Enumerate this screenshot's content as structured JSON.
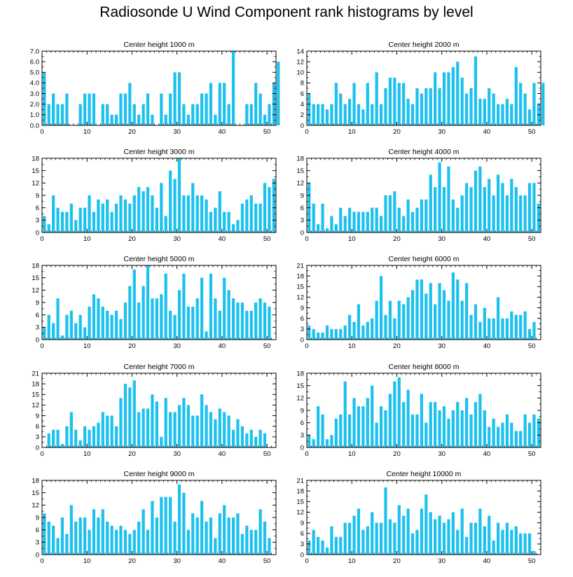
{
  "title": "Radiosonde U Wind Component rank histograms by level",
  "colors": {
    "bar": "#1cc1ee",
    "axis": "#000000",
    "background": "#ffffff"
  },
  "chart_data": [
    {
      "type": "bar",
      "title": "Center height 1000 m",
      "xlim": [
        0,
        52
      ],
      "ylim": [
        0,
        7
      ],
      "xticks": [
        0,
        10,
        20,
        30,
        40,
        50
      ],
      "yticks": [
        0,
        1,
        2,
        3,
        4,
        5,
        6,
        7
      ],
      "ytick_labels": [
        "0.0",
        "1.0",
        "2.0",
        "3.0",
        "4.0",
        "5.0",
        "6.0",
        "7.0"
      ],
      "values": [
        5,
        2,
        3,
        2,
        2,
        3,
        0,
        0,
        2,
        3,
        3,
        3,
        0,
        2,
        2,
        1,
        1,
        3,
        3,
        4,
        2,
        1,
        2,
        3,
        1,
        0,
        3,
        1,
        3,
        5,
        5,
        2,
        1,
        2,
        2,
        3,
        3,
        4,
        1,
        4,
        4,
        2,
        7,
        0,
        0,
        2,
        2,
        4,
        3,
        1,
        2,
        4,
        6
      ]
    },
    {
      "type": "bar",
      "title": "Center height 2000 m",
      "xlim": [
        0,
        52
      ],
      "ylim": [
        0,
        14
      ],
      "xticks": [
        0,
        10,
        20,
        30,
        40,
        50
      ],
      "yticks": [
        0,
        2,
        4,
        6,
        8,
        10,
        12,
        14
      ],
      "ytick_labels": [
        "0",
        "2",
        "4",
        "6",
        "8",
        "10",
        "12",
        "14"
      ],
      "values": [
        6,
        4,
        4,
        4,
        3,
        4,
        8,
        6,
        4,
        5,
        8,
        4,
        3,
        8,
        4,
        10,
        4,
        7,
        9,
        9,
        8,
        8,
        5,
        4,
        7,
        6,
        7,
        7,
        10,
        7,
        10,
        10,
        11,
        12,
        9,
        6,
        7,
        13,
        5,
        5,
        7,
        6,
        4,
        4,
        5,
        4,
        11,
        8,
        6,
        3,
        8,
        4,
        8
      ]
    },
    {
      "type": "bar",
      "title": "Center height 3000 m",
      "xlim": [
        0,
        52
      ],
      "ylim": [
        0,
        18
      ],
      "xticks": [
        0,
        10,
        20,
        30,
        40,
        50
      ],
      "yticks": [
        0,
        3,
        6,
        9,
        12,
        15,
        18
      ],
      "ytick_labels": [
        "0",
        "3",
        "6",
        "9",
        "12",
        "15",
        "18"
      ],
      "values": [
        4,
        2,
        9,
        6,
        5,
        5,
        7,
        3,
        6,
        6,
        9,
        5,
        8,
        7,
        8,
        5,
        7,
        9,
        8,
        7,
        9,
        11,
        10,
        11,
        9,
        6,
        12,
        4,
        15,
        13,
        18,
        9,
        9,
        12,
        9,
        9,
        8,
        5,
        6,
        10,
        5,
        5,
        2,
        3,
        7,
        8,
        9,
        7,
        7,
        12,
        11,
        13
      ]
    },
    {
      "type": "bar",
      "title": "Center height 4000 m",
      "xlim": [
        0,
        52
      ],
      "ylim": [
        0,
        18
      ],
      "xticks": [
        0,
        10,
        20,
        30,
        40,
        50
      ],
      "yticks": [
        0,
        3,
        6,
        9,
        12,
        15,
        18
      ],
      "ytick_labels": [
        "0",
        "3",
        "6",
        "9",
        "12",
        "15",
        "18"
      ],
      "values": [
        12,
        7,
        2,
        7,
        1,
        4,
        2,
        6,
        4,
        6,
        5,
        5,
        5,
        5,
        6,
        6,
        4,
        9,
        9,
        10,
        6,
        4,
        8,
        5,
        6,
        8,
        8,
        14,
        11,
        17,
        11,
        16,
        8,
        6,
        9,
        12,
        11,
        15,
        16,
        11,
        13,
        9,
        14,
        12,
        9,
        13,
        11,
        9,
        9,
        12,
        12,
        7
      ]
    },
    {
      "type": "bar",
      "title": "Center height 5000 m",
      "xlim": [
        0,
        52
      ],
      "ylim": [
        0,
        18
      ],
      "xticks": [
        0,
        10,
        20,
        30,
        40,
        50
      ],
      "yticks": [
        0,
        3,
        6,
        9,
        12,
        15,
        18
      ],
      "ytick_labels": [
        "0",
        "3",
        "6",
        "9",
        "12",
        "15",
        "18"
      ],
      "values": [
        3,
        6,
        4,
        10,
        1,
        6,
        7,
        4,
        6,
        3,
        8,
        11,
        10,
        8,
        7,
        6,
        7,
        5,
        9,
        13,
        17,
        9,
        13,
        18,
        10,
        10,
        11,
        16,
        7,
        6,
        12,
        16,
        8,
        8,
        10,
        15,
        2,
        16,
        10,
        7,
        15,
        12,
        10,
        9,
        9,
        7,
        7,
        9,
        10,
        9,
        8
      ]
    },
    {
      "type": "bar",
      "title": "Center height 6000 m",
      "xlim": [
        0,
        52
      ],
      "ylim": [
        0,
        21
      ],
      "xticks": [
        0,
        10,
        20,
        30,
        40,
        50
      ],
      "yticks": [
        0,
        3,
        6,
        9,
        12,
        15,
        18,
        21
      ],
      "ytick_labels": [
        "0",
        "3",
        "6",
        "9",
        "12",
        "15",
        "18",
        "21"
      ],
      "values": [
        4,
        3,
        2,
        2,
        4,
        3,
        3,
        3,
        4,
        7,
        5,
        10,
        4,
        5,
        6,
        11,
        18,
        7,
        11,
        6,
        11,
        10,
        12,
        14,
        17,
        17,
        13,
        16,
        10,
        16,
        14,
        11,
        19,
        17,
        11,
        16,
        7,
        10,
        5,
        9,
        6,
        6,
        12,
        6,
        6,
        8,
        7,
        7,
        8,
        3,
        5
      ]
    },
    {
      "type": "bar",
      "title": "Center height 7000 m",
      "xlim": [
        0,
        52
      ],
      "ylim": [
        0,
        21
      ],
      "xticks": [
        0,
        10,
        20,
        30,
        40,
        50
      ],
      "yticks": [
        0,
        3,
        6,
        9,
        12,
        15,
        18,
        21
      ],
      "ytick_labels": [
        "0",
        "3",
        "6",
        "9",
        "12",
        "15",
        "18",
        "21"
      ],
      "values": [
        0,
        4,
        5,
        5,
        1,
        6,
        10,
        5,
        2,
        6,
        5,
        6,
        7,
        10,
        9,
        9,
        6,
        14,
        18,
        17,
        19,
        10,
        11,
        11,
        15,
        13,
        3,
        14,
        10,
        10,
        12,
        14,
        12,
        9,
        9,
        15,
        12,
        10,
        8,
        11,
        10,
        9,
        5,
        8,
        6,
        4,
        5,
        3,
        5,
        4
      ]
    },
    {
      "type": "bar",
      "title": "Center height 8000 m",
      "xlim": [
        0,
        52
      ],
      "ylim": [
        0,
        18
      ],
      "xticks": [
        0,
        10,
        20,
        30,
        40,
        50
      ],
      "yticks": [
        0,
        3,
        6,
        9,
        12,
        15,
        18
      ],
      "ytick_labels": [
        "0",
        "3",
        "6",
        "9",
        "12",
        "15",
        "18"
      ],
      "values": [
        3,
        2,
        10,
        8,
        2,
        3,
        7,
        8,
        16,
        8,
        12,
        10,
        10,
        12,
        15,
        6,
        10,
        9,
        13,
        16,
        17,
        11,
        14,
        8,
        8,
        13,
        6,
        11,
        11,
        9,
        10,
        7,
        9,
        11,
        9,
        12,
        8,
        11,
        13,
        9,
        5,
        7,
        5,
        6,
        8,
        6,
        4,
        4,
        8,
        6,
        8,
        7
      ]
    },
    {
      "type": "bar",
      "title": "Center height 9000 m",
      "xlim": [
        0,
        52
      ],
      "ylim": [
        0,
        18
      ],
      "xticks": [
        0,
        10,
        20,
        30,
        40,
        50
      ],
      "yticks": [
        0,
        3,
        6,
        9,
        12,
        15,
        18
      ],
      "ytick_labels": [
        "0",
        "3",
        "6",
        "9",
        "12",
        "15",
        "18"
      ],
      "values": [
        10,
        8,
        7,
        4,
        9,
        5,
        12,
        8,
        9,
        9,
        6,
        11,
        9,
        11,
        8,
        7,
        6,
        7,
        6,
        5,
        6,
        8,
        11,
        6,
        13,
        9,
        14,
        14,
        14,
        8,
        17,
        15,
        6,
        10,
        9,
        13,
        8,
        9,
        4,
        10,
        12,
        9,
        9,
        10,
        5,
        7,
        6,
        6,
        11,
        8,
        4
      ]
    },
    {
      "type": "bar",
      "title": "Center height 10000 m",
      "xlim": [
        0,
        52
      ],
      "ylim": [
        0,
        21
      ],
      "xticks": [
        0,
        10,
        20,
        30,
        40,
        50
      ],
      "yticks": [
        0,
        3,
        6,
        9,
        12,
        15,
        18,
        21
      ],
      "ytick_labels": [
        "0",
        "3",
        "6",
        "9",
        "12",
        "15",
        "18",
        "21"
      ],
      "values": [
        4,
        7,
        5,
        4,
        2,
        8,
        5,
        5,
        9,
        9,
        11,
        13,
        7,
        8,
        12,
        9,
        9,
        19,
        10,
        9,
        14,
        11,
        13,
        6,
        7,
        13,
        17,
        12,
        10,
        11,
        9,
        10,
        12,
        7,
        13,
        5,
        9,
        9,
        13,
        8,
        11,
        4,
        9,
        7,
        9,
        7,
        8,
        6,
        6,
        6,
        1
      ]
    }
  ]
}
